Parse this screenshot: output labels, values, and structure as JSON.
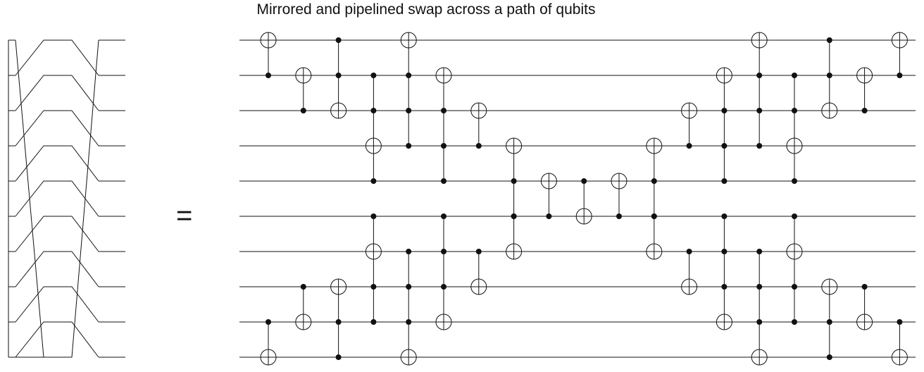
{
  "title": "Mirrored and pipelined swap across a path of qubits",
  "equals_sign": "=",
  "num_wires": 10,
  "swap_network": {
    "permutation_final": [
      9,
      0,
      1,
      2,
      3,
      4,
      5,
      6,
      7,
      8
    ]
  },
  "circuit": {
    "columns": [
      [
        [
          0,
          1
        ],
        [
          9,
          8
        ]
      ],
      [
        [
          1,
          2
        ],
        [
          8,
          7
        ]
      ],
      [
        [
          2,
          1,
          0
        ],
        [
          7,
          8,
          9
        ]
      ],
      [
        [
          3,
          4,
          2,
          1
        ],
        [
          6,
          5,
          7,
          8
        ]
      ],
      [
        [
          0,
          3,
          2,
          1
        ],
        [
          9,
          6,
          7,
          8
        ]
      ],
      [
        [
          1,
          4,
          3,
          2
        ],
        [
          8,
          5,
          6,
          7
        ]
      ],
      [
        [
          2,
          3
        ],
        [
          7,
          6
        ]
      ],
      [
        [
          3,
          4,
          5
        ],
        [
          6,
          5
        ]
      ],
      [
        [
          4,
          5
        ]
      ],
      [
        [
          5,
          4
        ]
      ],
      [
        [
          4,
          5
        ]
      ],
      [
        [
          3,
          4,
          5
        ],
        [
          6,
          5
        ]
      ],
      [
        [
          2,
          3
        ],
        [
          7,
          6
        ]
      ],
      [
        [
          1,
          4,
          3,
          2
        ],
        [
          8,
          5,
          6,
          7
        ]
      ],
      [
        [
          0,
          3,
          2,
          1
        ],
        [
          9,
          6,
          7,
          8
        ]
      ],
      [
        [
          3,
          4,
          2,
          1
        ],
        [
          6,
          5,
          7,
          8
        ]
      ],
      [
        [
          2,
          1,
          0
        ],
        [
          7,
          8,
          9
        ]
      ],
      [
        [
          1,
          2
        ],
        [
          8,
          7
        ]
      ],
      [
        [
          0,
          1
        ],
        [
          9,
          8
        ]
      ]
    ]
  },
  "colors": {
    "line": "#111111",
    "background": "#ffffff"
  }
}
